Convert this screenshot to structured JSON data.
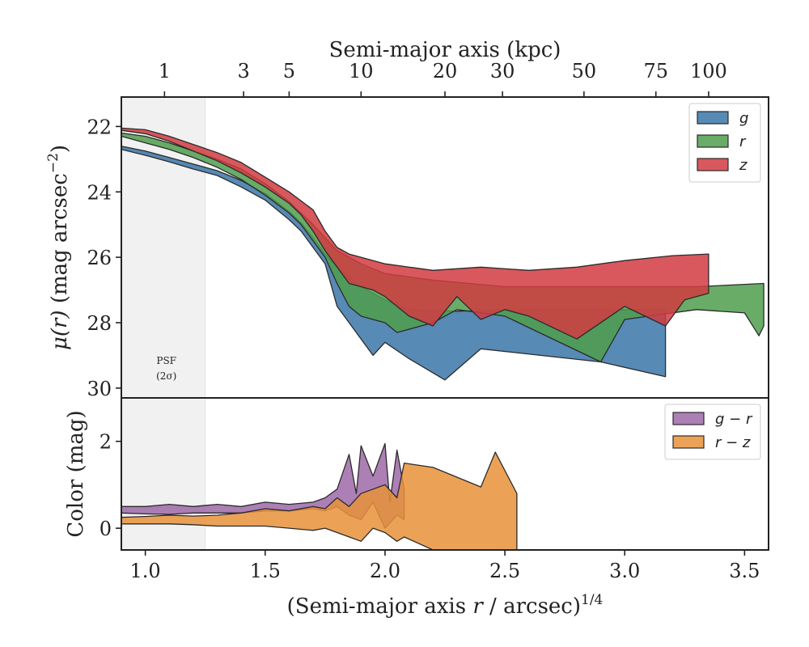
{
  "chart_data": [
    {
      "panel": "top",
      "type": "area",
      "title": "",
      "xlabel": "(Semi-major axis r / arcsec)^{1/4}",
      "ylabel": "μ(r) (mag arcsec^{−2})",
      "xlim": [
        0.9,
        3.6
      ],
      "ylim": [
        30.3,
        21.1
      ],
      "y_inverted": true,
      "x_ticks": [
        1.0,
        1.5,
        2.0,
        2.5,
        3.0,
        3.5
      ],
      "y_ticks": [
        22,
        24,
        26,
        28,
        30
      ],
      "top_axis": {
        "label": "Semi-major axis (kpc)",
        "ticks": [
          1,
          3,
          5,
          10,
          20,
          30,
          50,
          75,
          100
        ],
        "tick_positions_x": [
          1.08,
          1.41,
          1.6,
          1.9,
          2.25,
          2.49,
          2.83,
          3.13,
          3.35
        ]
      },
      "psf_region": {
        "x_end": 1.25,
        "label": "PSF",
        "sublabel": "(2σ)"
      },
      "legend": {
        "location": "upper right",
        "entries": [
          "g",
          "r",
          "z"
        ]
      },
      "grid": false,
      "series": [
        {
          "name": "g",
          "color": "#3a76a8",
          "upper": [
            [
              0.9,
              22.6
            ],
            [
              1.0,
              22.75
            ],
            [
              1.1,
              22.95
            ],
            [
              1.2,
              23.15
            ],
            [
              1.3,
              23.35
            ],
            [
              1.4,
              23.65
            ],
            [
              1.5,
              24.05
            ],
            [
              1.6,
              24.6
            ],
            [
              1.65,
              24.95
            ],
            [
              1.7,
              25.4
            ],
            [
              1.75,
              25.9
            ],
            [
              1.8,
              26.3
            ],
            [
              1.85,
              26.6
            ],
            [
              1.9,
              26.9
            ],
            [
              1.95,
              27.1
            ],
            [
              2.0,
              27.3
            ],
            [
              2.05,
              27.45
            ],
            [
              2.1,
              27.6
            ],
            [
              2.3,
              27.65
            ],
            [
              2.5,
              27.6
            ],
            [
              2.8,
              27.6
            ],
            [
              3.0,
              27.6
            ],
            [
              3.17,
              27.6
            ]
          ],
          "lower": [
            [
              3.17,
              29.65
            ],
            [
              2.9,
              29.2
            ],
            [
              2.4,
              28.8
            ],
            [
              2.25,
              29.75
            ],
            [
              2.1,
              29.1
            ],
            [
              2.0,
              28.6
            ],
            [
              1.95,
              29.0
            ],
            [
              1.9,
              28.5
            ],
            [
              1.85,
              28.0
            ],
            [
              1.8,
              27.5
            ],
            [
              1.75,
              26.2
            ],
            [
              1.7,
              25.7
            ],
            [
              1.65,
              25.2
            ],
            [
              1.6,
              24.85
            ],
            [
              1.5,
              24.25
            ],
            [
              1.4,
              23.85
            ],
            [
              1.3,
              23.5
            ],
            [
              1.2,
              23.3
            ],
            [
              1.1,
              23.08
            ],
            [
              1.0,
              22.88
            ],
            [
              0.9,
              22.7
            ]
          ]
        },
        {
          "name": "r",
          "color": "#4f9e4c",
          "upper": [
            [
              0.9,
              22.2
            ],
            [
              1.0,
              22.3
            ],
            [
              1.1,
              22.5
            ],
            [
              1.2,
              22.75
            ],
            [
              1.3,
              23.0
            ],
            [
              1.4,
              23.3
            ],
            [
              1.5,
              23.75
            ],
            [
              1.6,
              24.3
            ],
            [
              1.65,
              24.65
            ],
            [
              1.7,
              25.0
            ],
            [
              1.75,
              25.4
            ],
            [
              1.8,
              25.8
            ],
            [
              1.9,
              26.2
            ],
            [
              2.0,
              26.5
            ],
            [
              2.2,
              26.7
            ],
            [
              2.5,
              26.9
            ],
            [
              3.0,
              26.9
            ],
            [
              3.3,
              26.9
            ],
            [
              3.58,
              26.8
            ]
          ],
          "lower": [
            [
              3.58,
              28.1
            ],
            [
              3.56,
              28.4
            ],
            [
              3.5,
              27.7
            ],
            [
              3.3,
              27.6
            ],
            [
              3.1,
              27.8
            ],
            [
              3.0,
              27.9
            ],
            [
              2.9,
              29.2
            ],
            [
              2.5,
              27.8
            ],
            [
              2.3,
              27.6
            ],
            [
              2.2,
              28.0
            ],
            [
              2.1,
              28.2
            ],
            [
              2.05,
              28.3
            ],
            [
              2.0,
              28.0
            ],
            [
              1.95,
              27.9
            ],
            [
              1.9,
              27.8
            ],
            [
              1.85,
              27.5
            ],
            [
              1.8,
              26.8
            ],
            [
              1.75,
              26.0
            ],
            [
              1.7,
              25.5
            ],
            [
              1.65,
              25.0
            ],
            [
              1.6,
              24.65
            ],
            [
              1.5,
              24.1
            ],
            [
              1.4,
              23.62
            ],
            [
              1.3,
              23.25
            ],
            [
              1.2,
              22.95
            ],
            [
              1.1,
              22.7
            ],
            [
              1.0,
              22.5
            ],
            [
              0.9,
              22.3
            ]
          ]
        },
        {
          "name": "z",
          "color": "#d13b41",
          "upper": [
            [
              0.9,
              22.05
            ],
            [
              1.0,
              22.1
            ],
            [
              1.1,
              22.3
            ],
            [
              1.2,
              22.55
            ],
            [
              1.3,
              22.8
            ],
            [
              1.4,
              23.1
            ],
            [
              1.5,
              23.55
            ],
            [
              1.6,
              24.0
            ],
            [
              1.7,
              24.55
            ],
            [
              1.75,
              25.2
            ],
            [
              1.8,
              25.7
            ],
            [
              1.85,
              25.9
            ],
            [
              1.9,
              26.0
            ],
            [
              2.0,
              26.2
            ],
            [
              2.2,
              26.4
            ],
            [
              2.4,
              26.3
            ],
            [
              2.6,
              26.4
            ],
            [
              2.8,
              26.3
            ],
            [
              3.0,
              26.1
            ],
            [
              3.2,
              25.95
            ],
            [
              3.35,
              25.9
            ]
          ],
          "lower": [
            [
              3.35,
              27.1
            ],
            [
              3.25,
              27.3
            ],
            [
              3.17,
              28.1
            ],
            [
              3.0,
              27.5
            ],
            [
              2.8,
              28.5
            ],
            [
              2.6,
              27.8
            ],
            [
              2.5,
              27.6
            ],
            [
              2.4,
              27.9
            ],
            [
              2.3,
              27.2
            ],
            [
              2.2,
              28.1
            ],
            [
              2.1,
              27.8
            ],
            [
              2.05,
              27.5
            ],
            [
              2.0,
              27.2
            ],
            [
              1.95,
              27.0
            ],
            [
              1.9,
              26.9
            ],
            [
              1.85,
              26.8
            ],
            [
              1.8,
              26.3
            ],
            [
              1.75,
              25.8
            ],
            [
              1.7,
              25.2
            ],
            [
              1.65,
              24.7
            ],
            [
              1.6,
              24.35
            ],
            [
              1.5,
              23.85
            ],
            [
              1.4,
              23.42
            ],
            [
              1.3,
              23.05
            ],
            [
              1.2,
              22.75
            ],
            [
              1.1,
              22.45
            ],
            [
              1.0,
              22.22
            ],
            [
              0.9,
              22.12
            ]
          ]
        }
      ]
    },
    {
      "panel": "bottom",
      "type": "area",
      "title": "",
      "xlabel": "(Semi-major axis r / arcsec)^{1/4}",
      "ylabel": "Color (mag)",
      "xlim": [
        0.9,
        3.6
      ],
      "ylim": [
        -0.5,
        3.0
      ],
      "x_ticks": [
        1.0,
        1.5,
        2.0,
        2.5,
        3.0,
        3.5
      ],
      "y_ticks": [
        0,
        2
      ],
      "legend": {
        "location": "upper right",
        "entries": [
          "g − r",
          "r − z"
        ]
      },
      "grid": false,
      "series": [
        {
          "name": "g − r",
          "color": "#9d68a8",
          "upper": [
            [
              0.9,
              0.5
            ],
            [
              1.0,
              0.5
            ],
            [
              1.1,
              0.55
            ],
            [
              1.2,
              0.5
            ],
            [
              1.3,
              0.55
            ],
            [
              1.4,
              0.5
            ],
            [
              1.5,
              0.6
            ],
            [
              1.6,
              0.55
            ],
            [
              1.7,
              0.6
            ],
            [
              1.75,
              0.7
            ],
            [
              1.8,
              0.9
            ],
            [
              1.85,
              1.7
            ],
            [
              1.88,
              0.8
            ],
            [
              1.9,
              1.9
            ],
            [
              1.95,
              1.2
            ],
            [
              2.0,
              1.95
            ],
            [
              2.02,
              0.6
            ],
            [
              2.05,
              1.8
            ],
            [
              2.08,
              0.9
            ]
          ],
          "lower": [
            [
              2.08,
              0.2
            ],
            [
              2.05,
              0.3
            ],
            [
              2.0,
              0.0
            ],
            [
              1.95,
              0.6
            ],
            [
              1.9,
              0.2
            ],
            [
              1.85,
              0.3
            ],
            [
              1.8,
              0.5
            ],
            [
              1.75,
              0.4
            ],
            [
              1.7,
              0.45
            ],
            [
              1.6,
              0.4
            ],
            [
              1.5,
              0.4
            ],
            [
              1.4,
              0.35
            ],
            [
              1.3,
              0.35
            ],
            [
              1.2,
              0.35
            ],
            [
              1.1,
              0.32
            ],
            [
              1.0,
              0.33
            ],
            [
              0.9,
              0.35
            ]
          ]
        },
        {
          "name": "r − z",
          "color": "#e8923a",
          "upper": [
            [
              0.9,
              0.25
            ],
            [
              1.0,
              0.27
            ],
            [
              1.1,
              0.3
            ],
            [
              1.2,
              0.28
            ],
            [
              1.3,
              0.3
            ],
            [
              1.4,
              0.35
            ],
            [
              1.5,
              0.45
            ],
            [
              1.6,
              0.4
            ],
            [
              1.7,
              0.5
            ],
            [
              1.75,
              0.45
            ],
            [
              1.8,
              0.7
            ],
            [
              1.85,
              0.5
            ],
            [
              1.9,
              0.8
            ],
            [
              1.95,
              0.9
            ],
            [
              2.0,
              1.0
            ],
            [
              2.05,
              0.7
            ],
            [
              2.08,
              1.5
            ],
            [
              2.2,
              1.4
            ],
            [
              2.4,
              0.95
            ],
            [
              2.46,
              1.75
            ],
            [
              2.55,
              0.8
            ]
          ],
          "lower": [
            [
              2.55,
              -0.5
            ],
            [
              2.4,
              -0.5
            ],
            [
              2.2,
              -0.5
            ],
            [
              2.08,
              -0.2
            ],
            [
              2.05,
              -0.3
            ],
            [
              2.0,
              -0.1
            ],
            [
              1.95,
              0.0
            ],
            [
              1.9,
              -0.3
            ],
            [
              1.85,
              -0.2
            ],
            [
              1.8,
              -0.1
            ],
            [
              1.75,
              0.0
            ],
            [
              1.7,
              -0.05
            ],
            [
              1.6,
              0.0
            ],
            [
              1.5,
              0.05
            ],
            [
              1.4,
              0.05
            ],
            [
              1.3,
              0.05
            ],
            [
              1.2,
              0.08
            ],
            [
              1.1,
              0.1
            ],
            [
              1.0,
              0.1
            ],
            [
              0.9,
              0.1
            ]
          ]
        }
      ]
    }
  ]
}
